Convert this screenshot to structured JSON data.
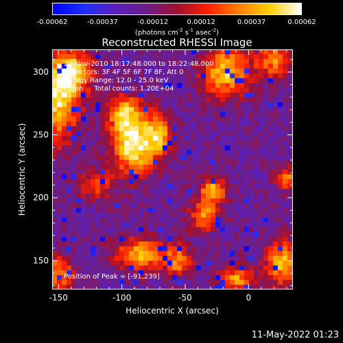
{
  "chart_data": {
    "type": "heatmap",
    "title": "Reconstructed RHESSI Image",
    "xlabel": "Heliocentric X (arcsec)",
    "ylabel": "Heliocentric Y (arcsec)",
    "xlim": [
      -155,
      35
    ],
    "ylim": [
      127,
      318
    ],
    "x_ticks": [
      -150,
      -100,
      -50,
      0
    ],
    "y_ticks": [
      150,
      200,
      250,
      300
    ],
    "colorbar": {
      "range": [
        -0.00062,
        0.00062
      ],
      "tick_values": [
        -0.00062,
        -0.00037,
        -0.00012,
        0.00012,
        0.00037,
        0.00062
      ],
      "tick_labels": [
        "-0.00062",
        "-0.00037",
        "-0.00012",
        "0.00012",
        "0.00037",
        "0.00062"
      ],
      "units_text": "photons cm",
      "units_exp1": "-2",
      "units_mid1": " s",
      "units_exp2": "-1",
      "units_mid2": " asec",
      "units_exp3": "-2",
      "colormap": [
        "#0000ff",
        "#2030ff",
        "#5a1fbf",
        "#6b1f8a",
        "#a01030",
        "#ff2000",
        "#ff8000",
        "#ffd000",
        "#ffffff"
      ]
    },
    "sources": [
      {
        "x": -90,
        "y": 242,
        "sigma_x": 12,
        "sigma_y": 16,
        "peak": 0.00062
      },
      {
        "x": -98,
        "y": 268,
        "sigma_x": 10,
        "sigma_y": 10,
        "peak": 0.00035
      },
      {
        "x": -70,
        "y": 250,
        "sigma_x": 7,
        "sigma_y": 12,
        "peak": 0.0003
      },
      {
        "x": -150,
        "y": 275,
        "sigma_x": 12,
        "sigma_y": 22,
        "peak": 0.00048
      },
      {
        "x": -140,
        "y": 300,
        "sigma_x": 12,
        "sigma_y": 12,
        "peak": 0.00042
      },
      {
        "x": -18,
        "y": 300,
        "sigma_x": 14,
        "sigma_y": 14,
        "peak": 0.00045
      },
      {
        "x": 20,
        "y": 310,
        "sigma_x": 10,
        "sigma_y": 10,
        "peak": 0.0003
      },
      {
        "x": -28,
        "y": 205,
        "sigma_x": 7,
        "sigma_y": 7,
        "peak": 0.00045
      },
      {
        "x": -35,
        "y": 185,
        "sigma_x": 8,
        "sigma_y": 8,
        "peak": 0.00035
      },
      {
        "x": -85,
        "y": 155,
        "sigma_x": 14,
        "sigma_y": 9,
        "peak": 0.00042
      },
      {
        "x": -55,
        "y": 150,
        "sigma_x": 8,
        "sigma_y": 8,
        "peak": 0.0003
      },
      {
        "x": 28,
        "y": 148,
        "sigma_x": 10,
        "sigma_y": 12,
        "peak": 0.00045
      },
      {
        "x": -10,
        "y": 135,
        "sigma_x": 10,
        "sigma_y": 7,
        "peak": 0.00035
      },
      {
        "x": -150,
        "y": 140,
        "sigma_x": 8,
        "sigma_y": 10,
        "peak": 0.00035
      },
      {
        "x": 30,
        "y": 215,
        "sigma_x": 6,
        "sigma_y": 6,
        "peak": 0.0003
      },
      {
        "x": -120,
        "y": 210,
        "sigma_x": 10,
        "sigma_y": 8,
        "peak": 0.00018
      }
    ],
    "background_level": -0.00018,
    "annotations": {
      "time_range": "28-Nov-2010 18:17:48.000 to 18:22:48.000",
      "detectors": "Detectors: 3F 4F 5F 6F 7F 8F, Att 0",
      "energy_range": "Energy Range: 12.0 - 25.0 keV",
      "method": "Clean     Total counts: 1.20E+04",
      "peak_position": "Position of Peak = [-91,239]"
    }
  },
  "timestamp": "11-May-2022 01:23"
}
